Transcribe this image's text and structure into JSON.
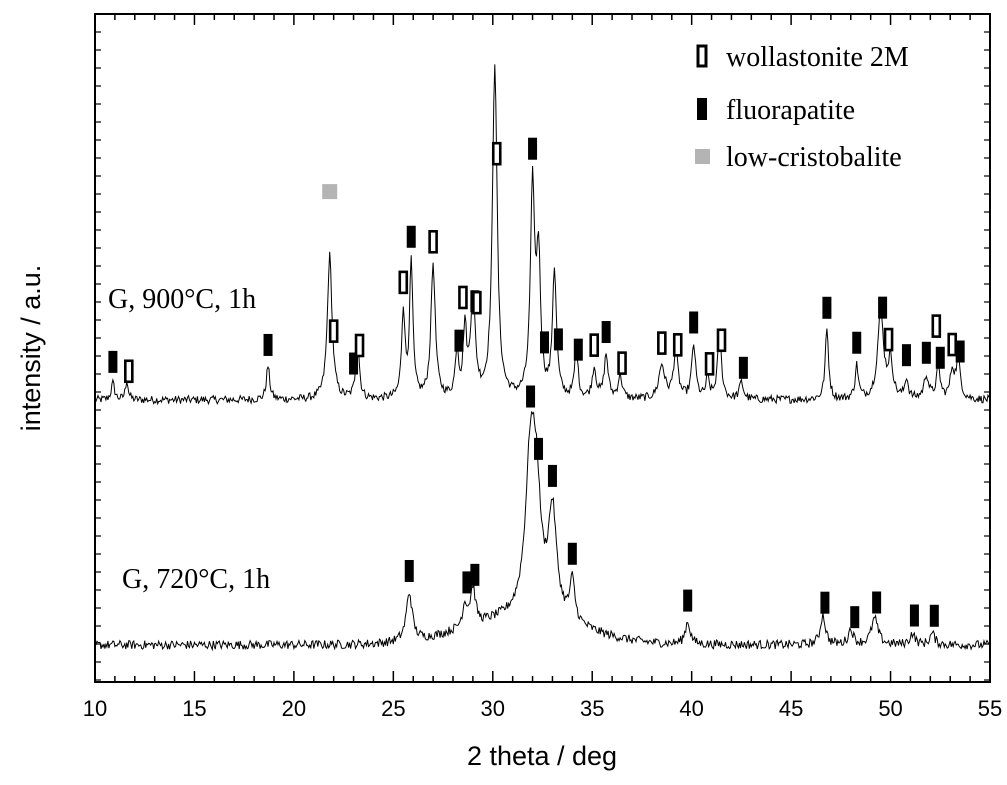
{
  "chart_data": {
    "type": "line",
    "xlabel": "2 theta / deg",
    "ylabel": "intensity / a.u.",
    "xlim": [
      10,
      55
    ],
    "xticks": [
      10,
      15,
      20,
      25,
      30,
      35,
      40,
      45,
      50,
      55
    ],
    "y_tick_labels": false,
    "legend": {
      "position": "top-right",
      "entries": [
        {
          "label": "wollastonite 2M",
          "marker": "open-bar",
          "color": "#000000"
        },
        {
          "label": "fluorapatite",
          "marker": "filled-bar",
          "color": "#000000"
        },
        {
          "label": "low-cristobalite",
          "marker": "gray-square",
          "color": "#b4b4b4"
        }
      ]
    },
    "series": [
      {
        "name": "G, 900°C, 1h",
        "baseline": 0.27,
        "noise": 0.012,
        "peaks": [
          [
            10.9,
            0.05,
            0.1
          ],
          [
            11.6,
            0.06,
            0.08
          ],
          [
            18.7,
            0.1,
            0.1
          ],
          [
            21.8,
            0.43,
            0.14
          ],
          [
            23.2,
            0.19,
            0.1
          ],
          [
            25.5,
            0.26,
            0.1
          ],
          [
            25.9,
            0.4,
            0.1
          ],
          [
            27.0,
            0.4,
            0.13
          ],
          [
            28.2,
            0.14,
            0.1
          ],
          [
            28.6,
            0.2,
            0.1
          ],
          [
            29.0,
            0.3,
            0.14
          ],
          [
            30.1,
            1.0,
            0.14
          ],
          [
            32.0,
            0.62,
            0.13
          ],
          [
            32.3,
            0.4,
            0.12
          ],
          [
            33.1,
            0.38,
            0.12
          ],
          [
            34.2,
            0.15,
            0.1
          ],
          [
            35.1,
            0.09,
            0.12
          ],
          [
            35.7,
            0.13,
            0.12
          ],
          [
            36.4,
            0.07,
            0.12
          ],
          [
            38.5,
            0.1,
            0.18
          ],
          [
            39.2,
            0.14,
            0.14
          ],
          [
            40.1,
            0.16,
            0.12
          ],
          [
            40.8,
            0.06,
            0.1
          ],
          [
            41.4,
            0.19,
            0.12
          ],
          [
            42.5,
            0.05,
            0.12
          ],
          [
            46.8,
            0.21,
            0.1
          ],
          [
            48.3,
            0.1,
            0.1
          ],
          [
            49.5,
            0.26,
            0.18
          ],
          [
            50.0,
            0.11,
            0.14
          ],
          [
            50.8,
            0.06,
            0.1
          ],
          [
            51.8,
            0.07,
            0.14
          ],
          [
            52.4,
            0.09,
            0.12
          ],
          [
            53.1,
            0.08,
            0.12
          ],
          [
            53.4,
            0.11,
            0.14
          ]
        ]
      },
      {
        "name": "G, 720°C, 1h",
        "baseline": 0.02,
        "noise": 0.012,
        "hump": [
          31.5,
          0.07,
          4.0
        ],
        "peaks": [
          [
            25.8,
            0.13,
            0.18
          ],
          [
            28.6,
            0.06,
            0.15
          ],
          [
            29.0,
            0.1,
            0.15
          ],
          [
            31.9,
            0.42,
            0.3
          ],
          [
            32.2,
            0.25,
            0.25
          ],
          [
            33.0,
            0.28,
            0.25
          ],
          [
            34.0,
            0.11,
            0.15
          ],
          [
            39.8,
            0.06,
            0.15
          ],
          [
            46.6,
            0.08,
            0.15
          ],
          [
            48.0,
            0.04,
            0.15
          ],
          [
            49.2,
            0.07,
            0.2
          ],
          [
            51.1,
            0.03,
            0.15
          ],
          [
            52.1,
            0.03,
            0.15
          ]
        ]
      }
    ],
    "annotations": {
      "wollastonite_open": [
        [
          "G, 900°C, 1h",
          11.7
        ],
        [
          "G, 900°C, 1h",
          22.0
        ],
        [
          "G, 900°C, 1h",
          23.3
        ],
        [
          "G, 900°C, 1h",
          25.5
        ],
        [
          "G, 900°C, 1h",
          27.0
        ],
        [
          "G, 900°C, 1h",
          28.5
        ],
        [
          "G, 900°C, 1h",
          29.2
        ],
        [
          "G, 900°C, 1h",
          30.2
        ],
        [
          "G, 900°C, 1h",
          35.1
        ],
        [
          "G, 900°C, 1h",
          36.5
        ],
        [
          "G, 900°C, 1h",
          38.5
        ],
        [
          "G, 900°C, 1h",
          39.3
        ],
        [
          "G, 900°C, 1h",
          40.9
        ],
        [
          "G, 900°C, 1h",
          41.5
        ],
        [
          "G, 900°C, 1h",
          49.9
        ],
        [
          "G, 900°C, 1h",
          52.3
        ],
        [
          "G, 900°C, 1h",
          53.1
        ]
      ],
      "fluorapatite_filled": [
        [
          "G, 900°C, 1h",
          10.9
        ],
        [
          "G, 900°C, 1h",
          18.7
        ],
        [
          "G, 900°C, 1h",
          23.0
        ],
        [
          "G, 900°C, 1h",
          25.9
        ],
        [
          "G, 900°C, 1h",
          28.3
        ],
        [
          "G, 900°C, 1h",
          29.1
        ],
        [
          "G, 900°C, 1h",
          32.0
        ],
        [
          "G, 900°C, 1h",
          32.6
        ],
        [
          "G, 900°C, 1h",
          33.3
        ],
        [
          "G, 900°C, 1h",
          34.3
        ],
        [
          "G, 900°C, 1h",
          35.7
        ],
        [
          "G, 900°C, 1h",
          40.1
        ],
        [
          "G, 900°C, 1h",
          42.6
        ],
        [
          "G, 900°C, 1h",
          46.8
        ],
        [
          "G, 900°C, 1h",
          48.3
        ],
        [
          "G, 900°C, 1h",
          49.6
        ],
        [
          "G, 900°C, 1h",
          50.8
        ],
        [
          "G, 900°C, 1h",
          51.8
        ],
        [
          "G, 900°C, 1h",
          52.5
        ],
        [
          "G, 900°C, 1h",
          53.5
        ],
        [
          "G, 720°C, 1h",
          25.8
        ],
        [
          "G, 720°C, 1h",
          28.7
        ],
        [
          "G, 720°C, 1h",
          29.1
        ],
        [
          "G, 720°C, 1h",
          31.9
        ],
        [
          "G, 720°C, 1h",
          32.3
        ],
        [
          "G, 720°C, 1h",
          33.0
        ],
        [
          "G, 720°C, 1h",
          34.0
        ],
        [
          "G, 720°C, 1h",
          39.8
        ],
        [
          "G, 720°C, 1h",
          46.7
        ],
        [
          "G, 720°C, 1h",
          48.2
        ],
        [
          "G, 720°C, 1h",
          49.3
        ],
        [
          "G, 720°C, 1h",
          51.2
        ],
        [
          "G, 720°C, 1h",
          52.2
        ]
      ],
      "cristobalite_gray": [
        [
          "G, 900°C, 1h",
          21.8
        ]
      ]
    }
  }
}
